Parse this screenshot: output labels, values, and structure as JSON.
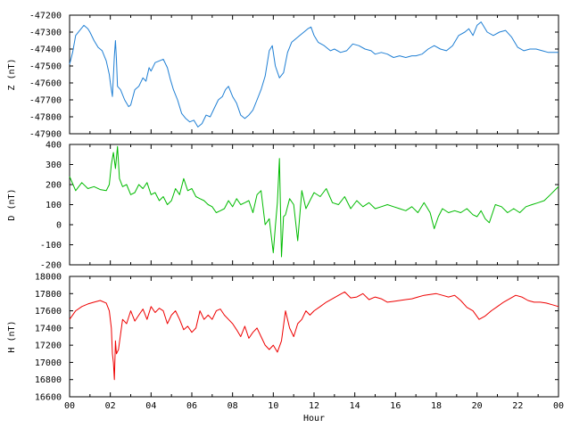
{
  "chart_data": {
    "type": "line",
    "xlabel": "Hour",
    "xlim": [
      0,
      24
    ],
    "x_ticks": [
      "00",
      "02",
      "04",
      "06",
      "08",
      "10",
      "12",
      "14",
      "16",
      "18",
      "20",
      "22",
      "00"
    ],
    "panels": [
      {
        "ylabel": "Z (nT)",
        "color": "#1f7fd4",
        "ylim": [
          -47900,
          -47200
        ],
        "y_ticks": [
          "-47200",
          "-47300",
          "-47400",
          "-47500",
          "-47600",
          "-47700",
          "-47800",
          "-47900"
        ],
        "series": {
          "x": [
            0.0,
            0.15,
            0.3,
            0.5,
            0.7,
            0.9,
            1.0,
            1.2,
            1.4,
            1.6,
            1.8,
            1.95,
            2.0,
            2.1,
            2.2,
            2.25,
            2.3,
            2.35,
            2.5,
            2.7,
            2.9,
            3.0,
            3.2,
            3.4,
            3.6,
            3.75,
            3.9,
            4.0,
            4.2,
            4.4,
            4.6,
            4.8,
            4.95,
            5.1,
            5.3,
            5.5,
            5.7,
            5.9,
            6.1,
            6.3,
            6.5,
            6.7,
            6.9,
            7.1,
            7.3,
            7.5,
            7.65,
            7.8,
            8.0,
            8.2,
            8.4,
            8.6,
            8.8,
            9.0,
            9.2,
            9.4,
            9.6,
            9.8,
            9.95,
            10.1,
            10.3,
            10.5,
            10.7,
            10.9,
            11.1,
            11.3,
            11.5,
            11.7,
            11.85,
            12.0,
            12.2,
            12.5,
            12.8,
            13.0,
            13.3,
            13.6,
            13.9,
            14.2,
            14.5,
            14.8,
            15.0,
            15.3,
            15.6,
            15.9,
            16.2,
            16.5,
            16.8,
            17.0,
            17.3,
            17.6,
            17.9,
            18.2,
            18.5,
            18.8,
            19.1,
            19.4,
            19.6,
            19.8,
            20.0,
            20.2,
            20.5,
            20.8,
            21.1,
            21.4,
            21.7,
            22.0,
            22.3,
            22.6,
            22.9,
            23.2,
            23.5,
            23.8,
            24.0
          ],
          "y": [
            -47490,
            -47420,
            -47320,
            -47290,
            -47260,
            -47280,
            -47300,
            -47350,
            -47390,
            -47410,
            -47470,
            -47550,
            -47600,
            -47680,
            -47440,
            -47350,
            -47460,
            -47620,
            -47640,
            -47700,
            -47740,
            -47730,
            -47640,
            -47620,
            -47570,
            -47590,
            -47510,
            -47530,
            -47480,
            -47470,
            -47460,
            -47510,
            -47580,
            -47640,
            -47700,
            -47780,
            -47810,
            -47830,
            -47820,
            -47860,
            -47840,
            -47790,
            -47800,
            -47750,
            -47700,
            -47680,
            -47640,
            -47620,
            -47680,
            -47720,
            -47790,
            -47810,
            -47790,
            -47760,
            -47700,
            -47640,
            -47560,
            -47410,
            -47380,
            -47500,
            -47570,
            -47540,
            -47420,
            -47360,
            -47340,
            -47320,
            -47300,
            -47280,
            -47270,
            -47320,
            -47360,
            -47380,
            -47410,
            -47400,
            -47420,
            -47410,
            -47370,
            -47380,
            -47400,
            -47410,
            -47430,
            -47420,
            -47430,
            -47450,
            -47440,
            -47450,
            -47440,
            -47440,
            -47430,
            -47400,
            -47380,
            -47400,
            -47410,
            -47380,
            -47320,
            -47300,
            -47280,
            -47320,
            -47260,
            -47240,
            -47300,
            -47320,
            -47300,
            -47290,
            -47330,
            -47390,
            -47410,
            -47400,
            -47400,
            -47410,
            -47420,
            -47420,
            -47420
          ]
        }
      },
      {
        "ylabel": "D (nT)",
        "color": "#00bb00",
        "ylim": [
          -200,
          400
        ],
        "y_ticks": [
          "400",
          "300",
          "200",
          "100",
          "0",
          "-100",
          "-200"
        ],
        "series": {
          "x": [
            0.0,
            0.3,
            0.6,
            0.9,
            1.2,
            1.5,
            1.8,
            1.95,
            2.05,
            2.15,
            2.25,
            2.35,
            2.45,
            2.6,
            2.8,
            3.0,
            3.2,
            3.4,
            3.6,
            3.8,
            4.0,
            4.2,
            4.4,
            4.6,
            4.8,
            5.0,
            5.2,
            5.4,
            5.6,
            5.8,
            6.0,
            6.2,
            6.4,
            6.6,
            6.8,
            7.0,
            7.2,
            7.4,
            7.6,
            7.8,
            8.0,
            8.2,
            8.4,
            8.6,
            8.8,
            9.0,
            9.2,
            9.4,
            9.6,
            9.8,
            10.0,
            10.1,
            10.2,
            10.3,
            10.4,
            10.5,
            10.6,
            10.8,
            11.0,
            11.2,
            11.4,
            11.6,
            11.8,
            12.0,
            12.3,
            12.6,
            12.9,
            13.2,
            13.5,
            13.8,
            14.1,
            14.4,
            14.7,
            15.0,
            15.3,
            15.6,
            15.9,
            16.2,
            16.5,
            16.8,
            17.1,
            17.4,
            17.7,
            17.9,
            18.1,
            18.3,
            18.6,
            18.9,
            19.2,
            19.5,
            19.8,
            20.0,
            20.2,
            20.4,
            20.6,
            20.9,
            21.2,
            21.5,
            21.8,
            22.1,
            22.4,
            22.7,
            23.0,
            23.3,
            23.6,
            23.9,
            24.0
          ],
          "y": [
            240,
            170,
            210,
            180,
            190,
            175,
            170,
            200,
            300,
            360,
            280,
            390,
            230,
            190,
            200,
            150,
            160,
            200,
            180,
            210,
            150,
            160,
            120,
            140,
            100,
            120,
            180,
            150,
            230,
            170,
            180,
            140,
            130,
            120,
            100,
            90,
            60,
            70,
            80,
            120,
            90,
            130,
            100,
            110,
            120,
            60,
            150,
            170,
            0,
            30,
            -140,
            -10,
            110,
            330,
            -160,
            40,
            50,
            130,
            100,
            -80,
            170,
            80,
            120,
            160,
            140,
            180,
            110,
            100,
            140,
            80,
            120,
            90,
            110,
            80,
            90,
            100,
            90,
            80,
            70,
            90,
            60,
            110,
            60,
            -20,
            40,
            80,
            60,
            70,
            60,
            80,
            50,
            40,
            70,
            30,
            10,
            100,
            90,
            60,
            80,
            60,
            90,
            100,
            110,
            120,
            150,
            180,
            190
          ]
        }
      },
      {
        "ylabel": "H (nT)",
        "color": "#ee0000",
        "ylim": [
          16600,
          18000
        ],
        "y_ticks": [
          "18000",
          "17800",
          "17600",
          "17400",
          "17200",
          "17000",
          "16800",
          "16600"
        ],
        "series": {
          "x": [
            0.0,
            0.3,
            0.6,
            0.9,
            1.2,
            1.5,
            1.8,
            1.95,
            2.05,
            2.1,
            2.15,
            2.2,
            2.25,
            2.3,
            2.4,
            2.6,
            2.8,
            3.0,
            3.2,
            3.4,
            3.6,
            3.8,
            4.0,
            4.2,
            4.4,
            4.6,
            4.8,
            5.0,
            5.2,
            5.4,
            5.6,
            5.8,
            6.0,
            6.2,
            6.4,
            6.6,
            6.8,
            7.0,
            7.2,
            7.4,
            7.6,
            7.8,
            8.0,
            8.2,
            8.4,
            8.6,
            8.8,
            9.0,
            9.2,
            9.4,
            9.6,
            9.8,
            10.0,
            10.2,
            10.4,
            10.6,
            10.8,
            11.0,
            11.2,
            11.4,
            11.6,
            11.8,
            12.0,
            12.3,
            12.6,
            12.9,
            13.2,
            13.5,
            13.8,
            14.1,
            14.4,
            14.7,
            15.0,
            15.3,
            15.6,
            15.9,
            16.2,
            16.5,
            16.8,
            17.1,
            17.4,
            17.7,
            18.0,
            18.3,
            18.6,
            18.9,
            19.2,
            19.5,
            19.8,
            20.1,
            20.4,
            20.7,
            21.0,
            21.3,
            21.6,
            21.9,
            22.2,
            22.5,
            22.8,
            23.1,
            23.4,
            23.7,
            24.0
          ],
          "y": [
            17500,
            17600,
            17650,
            17680,
            17700,
            17720,
            17690,
            17600,
            17400,
            17100,
            17000,
            16800,
            17250,
            17100,
            17150,
            17500,
            17450,
            17600,
            17480,
            17550,
            17620,
            17500,
            17650,
            17580,
            17630,
            17600,
            17450,
            17550,
            17600,
            17500,
            17380,
            17420,
            17350,
            17400,
            17600,
            17500,
            17550,
            17500,
            17600,
            17620,
            17550,
            17500,
            17450,
            17380,
            17300,
            17420,
            17280,
            17350,
            17400,
            17300,
            17200,
            17150,
            17200,
            17120,
            17250,
            17600,
            17400,
            17300,
            17450,
            17500,
            17600,
            17550,
            17600,
            17650,
            17700,
            17740,
            17780,
            17820,
            17750,
            17760,
            17800,
            17730,
            17760,
            17740,
            17700,
            17710,
            17720,
            17730,
            17740,
            17760,
            17780,
            17790,
            17800,
            17780,
            17760,
            17780,
            17720,
            17640,
            17600,
            17500,
            17540,
            17600,
            17650,
            17700,
            17740,
            17780,
            17760,
            17720,
            17700,
            17700,
            17690,
            17670,
            17650
          ]
        }
      }
    ]
  }
}
